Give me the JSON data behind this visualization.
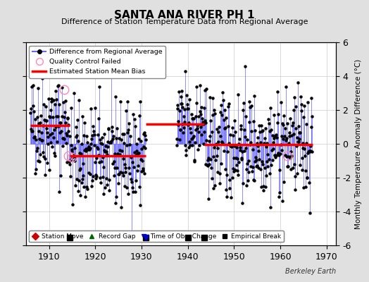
{
  "title": "SANTA ANA RIVER PH 1",
  "subtitle": "Difference of Station Temperature Data from Regional Average",
  "ylabel": "Monthly Temperature Anomaly Difference (°C)",
  "xlim": [
    1905,
    1972
  ],
  "ylim": [
    -6,
    6
  ],
  "yticks": [
    -6,
    -4,
    -2,
    0,
    2,
    4,
    6
  ],
  "xticks": [
    1910,
    1920,
    1930,
    1940,
    1950,
    1960,
    1970
  ],
  "background_color": "#e0e0e0",
  "plot_bg_color": "#ffffff",
  "seed": 42,
  "segments": [
    {
      "start": 1906.0,
      "end": 1914.5,
      "bias": 1.1
    },
    {
      "start": 1914.5,
      "end": 1931.0,
      "bias": -0.7
    },
    {
      "start": 1931.0,
      "end": 1943.5,
      "bias": 1.15
    },
    {
      "start": 1943.5,
      "end": 1967.0,
      "bias": -0.05
    }
  ],
  "gap_start": 1931.0,
  "gap_end": 1937.5,
  "empirical_breaks": [
    1914.5,
    1931.0,
    1940.0,
    1943.5
  ],
  "time_obs_changes": [
    1931.0
  ],
  "qc_failed_points": [
    {
      "t": 1913.2,
      "v": 3.2
    },
    {
      "t": 1914.2,
      "v": -0.7
    },
    {
      "t": 1914.9,
      "v": -0.8
    },
    {
      "t": 1961.5,
      "v": -0.7
    }
  ],
  "data_color": "#6666ff",
  "bias_color": "#ff0000",
  "qc_color": "#ff88bb",
  "marker_color": "#000000",
  "station_move_color": "#cc0000",
  "record_gap_color": "#006600",
  "time_obs_color": "#0000cc",
  "empirical_break_color": "#000000",
  "grid_color": "#cccccc"
}
